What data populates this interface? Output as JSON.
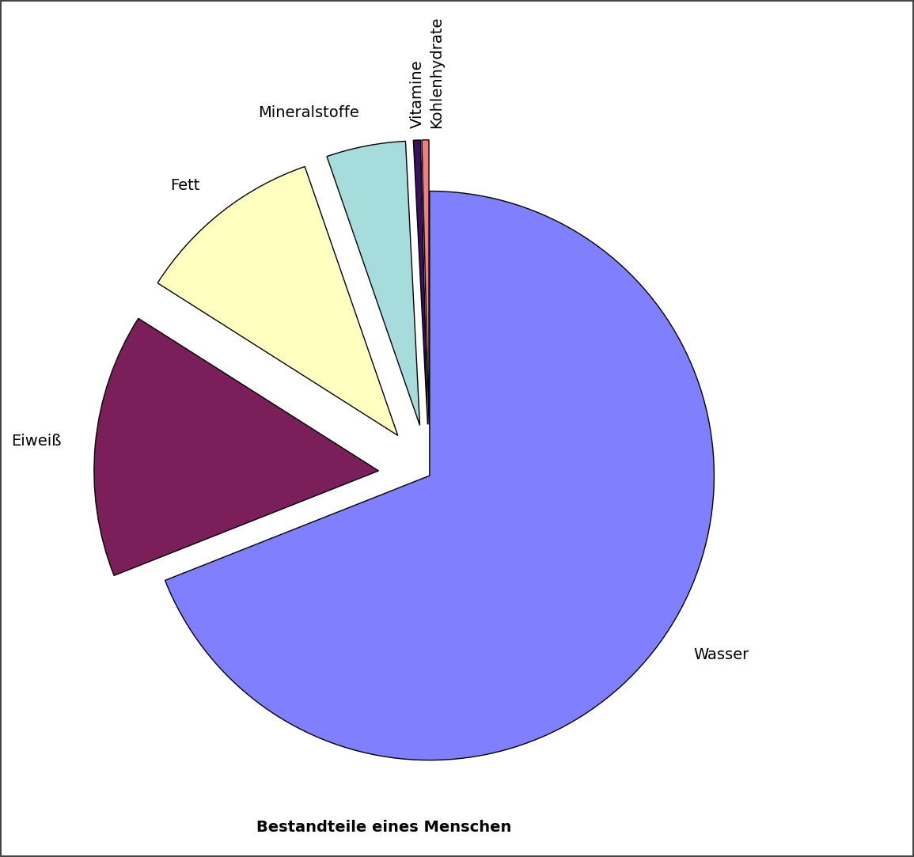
{
  "chart_data": {
    "type": "pie",
    "title": "Bestandteile eines Menschen",
    "categories": [
      "Wasser",
      "Eiweiß",
      "Fett",
      "Mineralstoffe",
      "Vitamine",
      "Kohlenhydrate"
    ],
    "values": [
      69,
      15,
      10.7,
      4.5,
      0.4,
      0.4
    ],
    "colors": [
      "#8080ff",
      "#7b1f5a",
      "#ffffc0",
      "#a6dcdc",
      "#3a1060",
      "#f08080"
    ]
  }
}
